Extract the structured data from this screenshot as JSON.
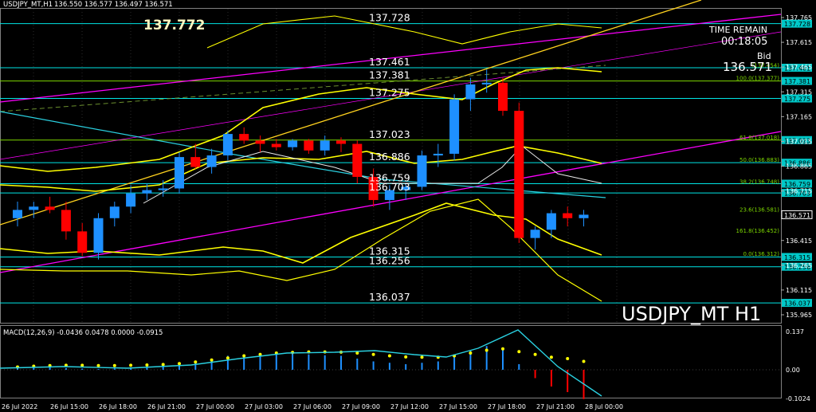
{
  "header": {
    "symbol_tf": "USDJPY_MT,H1",
    "ohlc": "136.550 136.577 136.497 136.571"
  },
  "big_price": "137.772",
  "watermark": "USDJPY_MT H1",
  "time_remain": {
    "label": "TIME REMAIN",
    "value": "00:18:05"
  },
  "bid": {
    "label": "Bid",
    "value": "136.571"
  },
  "current_price_label": "136.571",
  "levels": [
    {
      "price": 137.728,
      "text": "137.728",
      "color": "#00e5e5"
    },
    {
      "price": 137.461,
      "text": "137.461",
      "color": "#00e5e5"
    },
    {
      "price": 137.381,
      "text": "137.381",
      "color": "#7cd600"
    },
    {
      "price": 137.275,
      "text": "137.275",
      "color": "#00e5e5"
    },
    {
      "price": 137.023,
      "text": "137.023",
      "color": "#7cd600"
    },
    {
      "price": 136.886,
      "text": "136.886",
      "color": "#00e5e5"
    },
    {
      "price": 136.759,
      "text": "136.759",
      "color": "#00e5e5"
    },
    {
      "price": 136.703,
      "text": "136.703",
      "color": "#00e5e5"
    },
    {
      "price": 136.315,
      "text": "136.315",
      "color": "#00e5e5"
    },
    {
      "price": 136.256,
      "text": "136.256",
      "color": "#00e5e5"
    },
    {
      "price": 136.037,
      "text": "136.037",
      "color": "#00e5e5"
    }
  ],
  "fib_labels": [
    {
      "price": 137.377,
      "text": "100.0(137.377)"
    },
    {
      "price": 137.018,
      "text": "61.8(137.018)"
    },
    {
      "price": 136.883,
      "text": "50.0(136.883)"
    },
    {
      "price": 136.748,
      "text": "38.2(136.748)"
    },
    {
      "price": 136.581,
      "text": "23.6(136.581)"
    },
    {
      "price": 136.452,
      "text": "161.8(136.452)"
    },
    {
      "price": 136.312,
      "text": "0.0(136.312)"
    },
    {
      "price": 137.454,
      "text": "(137.454)"
    }
  ],
  "axis": {
    "prices": [
      "137.765",
      "137.615",
      "137.465",
      "137.315",
      "137.165",
      "137.015",
      "136.865",
      "136.715",
      "136.565",
      "136.415",
      "136.265",
      "136.115",
      "135.965"
    ],
    "price_values": [
      137.765,
      137.615,
      137.465,
      137.315,
      137.165,
      137.015,
      136.865,
      136.715,
      136.565,
      136.415,
      136.265,
      136.115,
      135.965
    ],
    "times": [
      "26 Jul 2022",
      "26 Jul 15:00",
      "26 Jul 18:00",
      "26 Jul 21:00",
      "27 Jul 00:00",
      "27 Jul 03:00",
      "27 Jul 06:00",
      "27 Jul 09:00",
      "27 Jul 12:00",
      "27 Jul 15:00",
      "27 Jul 18:00",
      "27 Jul 21:00",
      "28 Jul 00:00"
    ]
  },
  "macd": {
    "label": "MACD(12,26,9) -0.0436 0.0478 0.0000 -0.0915",
    "scale": [
      "0.137",
      "0.00",
      "-0.1024"
    ],
    "scale_values": [
      0.137,
      0.0,
      -0.1024
    ]
  },
  "colors": {
    "bull": "#1e90ff",
    "bear": "#ff0000",
    "level_cyan": "#00e5e5",
    "fib_green": "#7cd600",
    "channel": "#ff00ff",
    "band": "#ffff00"
  },
  "chart_data": {
    "type": "candlestick",
    "symbol": "USDJPY_MT",
    "timeframe": "H1",
    "ylim": [
      135.9,
      137.8
    ],
    "ohlc": [
      [
        136.55,
        136.65,
        136.5,
        136.6
      ],
      [
        136.6,
        136.65,
        136.55,
        136.62
      ],
      [
        136.62,
        136.68,
        136.58,
        136.6
      ],
      [
        136.6,
        136.65,
        136.42,
        136.47
      ],
      [
        136.47,
        136.52,
        136.32,
        136.34
      ],
      [
        136.34,
        136.58,
        136.3,
        136.55
      ],
      [
        136.55,
        136.65,
        136.5,
        136.62
      ],
      [
        136.62,
        136.75,
        136.58,
        136.7
      ],
      [
        136.7,
        136.76,
        136.66,
        136.72
      ],
      [
        136.72,
        136.78,
        136.68,
        136.73
      ],
      [
        136.73,
        136.95,
        136.7,
        136.92
      ],
      [
        136.92,
        137.0,
        136.85,
        136.86
      ],
      [
        136.86,
        136.97,
        136.82,
        136.93
      ],
      [
        136.93,
        137.08,
        136.9,
        137.06
      ],
      [
        137.06,
        137.1,
        137.0,
        137.02
      ],
      [
        137.02,
        137.05,
        136.95,
        137.0
      ],
      [
        137.0,
        137.03,
        136.96,
        136.98
      ],
      [
        136.98,
        137.03,
        136.96,
        137.02
      ],
      [
        137.02,
        137.03,
        136.94,
        136.96
      ],
      [
        136.96,
        137.05,
        136.93,
        137.02
      ],
      [
        137.02,
        137.04,
        136.95,
        137.0
      ],
      [
        137.0,
        137.02,
        136.76,
        136.8
      ],
      [
        136.8,
        136.85,
        136.62,
        136.66
      ],
      [
        136.66,
        136.75,
        136.6,
        136.72
      ],
      [
        136.72,
        136.76,
        136.66,
        136.74
      ],
      [
        136.74,
        136.96,
        136.72,
        136.93
      ],
      [
        136.93,
        137.0,
        136.86,
        136.94
      ],
      [
        136.94,
        137.3,
        136.9,
        137.27
      ],
      [
        137.27,
        137.4,
        137.2,
        137.36
      ],
      [
        137.36,
        137.45,
        137.31,
        137.37
      ],
      [
        137.37,
        137.4,
        137.17,
        137.2
      ],
      [
        137.2,
        137.25,
        136.4,
        136.43
      ],
      [
        136.43,
        136.5,
        136.36,
        136.48
      ],
      [
        136.48,
        136.6,
        136.43,
        136.58
      ],
      [
        136.58,
        136.62,
        136.5,
        136.55
      ],
      [
        136.55,
        136.6,
        136.5,
        136.571
      ]
    ]
  }
}
